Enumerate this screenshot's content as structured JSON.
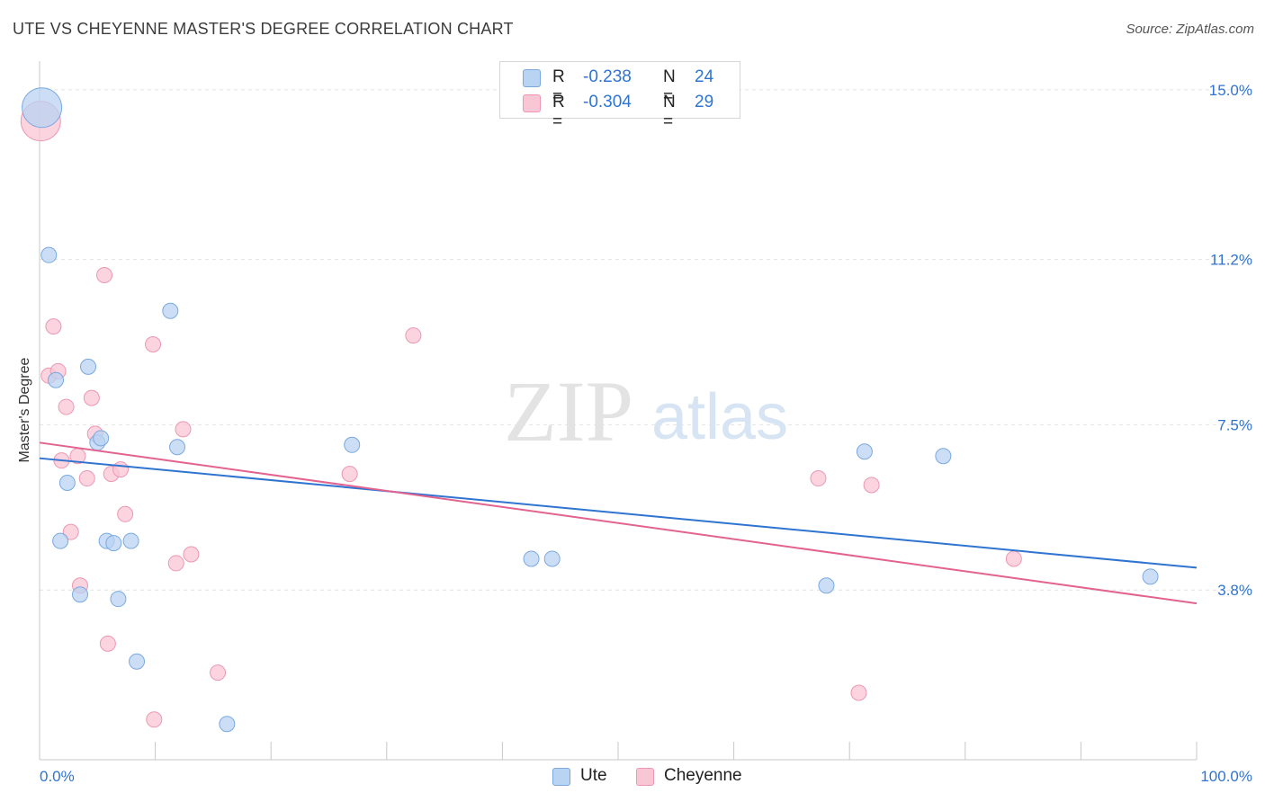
{
  "title": "UTE VS CHEYENNE MASTER'S DEGREE CORRELATION CHART",
  "source": "Source: ZipAtlas.com",
  "watermark": {
    "zip": "ZIP",
    "atlas": "atlas"
  },
  "legend": {
    "rows": [
      {
        "r_label": "R =",
        "r_value": "-0.238",
        "n_label": "N =",
        "n_value": "24"
      },
      {
        "r_label": "R =",
        "r_value": "-0.304",
        "n_label": "N =",
        "n_value": "29"
      }
    ]
  },
  "colors": {
    "ute_fill": "#b9d3f2",
    "ute_stroke": "#7aa9e0",
    "ute_line": "#2f74d0",
    "cheyenne_fill": "#f9c6d6",
    "cheyenne_stroke": "#ec98b3",
    "cheyenne_line": "#e2638f",
    "tick_text": "#2f74d0",
    "grid": "#e2e2e2"
  },
  "chart_data": {
    "type": "scatter",
    "title": "UTE VS CHEYENNE MASTER'S DEGREE CORRELATION CHART",
    "xlabel": "",
    "ylabel": "Master's Degree",
    "xlim": [
      0,
      100
    ],
    "ylim": [
      0,
      15.4
    ],
    "x_tick_labels": [
      "0.0%",
      "100.0%"
    ],
    "y_ticks": [
      3.8,
      7.5,
      11.2,
      15.0
    ],
    "y_tick_labels": [
      "3.8%",
      "7.5%",
      "11.2%",
      "15.0%"
    ],
    "grid": "horizontal dashed",
    "legend_position": "top-center and bottom",
    "series": [
      {
        "name": "Ute",
        "r": -0.238,
        "n": 24,
        "trend": {
          "x": [
            0,
            100
          ],
          "y": [
            6.75,
            4.3
          ]
        },
        "points": [
          {
            "x": 0.2,
            "y": 14.6,
            "big": true
          },
          {
            "x": 0.8,
            "y": 11.3
          },
          {
            "x": 1.4,
            "y": 8.5
          },
          {
            "x": 1.8,
            "y": 4.9
          },
          {
            "x": 2.4,
            "y": 6.2
          },
          {
            "x": 3.5,
            "y": 3.7
          },
          {
            "x": 4.2,
            "y": 8.8
          },
          {
            "x": 5.0,
            "y": 7.1
          },
          {
            "x": 5.3,
            "y": 7.2
          },
          {
            "x": 5.8,
            "y": 4.9
          },
          {
            "x": 6.4,
            "y": 4.85
          },
          {
            "x": 6.8,
            "y": 3.6
          },
          {
            "x": 7.9,
            "y": 4.9
          },
          {
            "x": 8.4,
            "y": 2.2
          },
          {
            "x": 11.3,
            "y": 10.05
          },
          {
            "x": 11.9,
            "y": 7.0
          },
          {
            "x": 16.2,
            "y": 0.8
          },
          {
            "x": 27.0,
            "y": 7.05
          },
          {
            "x": 42.5,
            "y": 4.5
          },
          {
            "x": 44.3,
            "y": 4.5
          },
          {
            "x": 68.0,
            "y": 3.9
          },
          {
            "x": 71.3,
            "y": 6.9
          },
          {
            "x": 78.1,
            "y": 6.8
          },
          {
            "x": 96.0,
            "y": 4.1
          }
        ]
      },
      {
        "name": "Cheyenne",
        "r": -0.304,
        "n": 29,
        "trend": {
          "x": [
            0,
            100
          ],
          "y": [
            7.1,
            3.5
          ]
        },
        "points": [
          {
            "x": 0.1,
            "y": 14.3,
            "big": true
          },
          {
            "x": 0.8,
            "y": 8.6
          },
          {
            "x": 1.2,
            "y": 9.7
          },
          {
            "x": 1.6,
            "y": 8.7
          },
          {
            "x": 1.9,
            "y": 6.7
          },
          {
            "x": 2.3,
            "y": 7.9
          },
          {
            "x": 2.7,
            "y": 5.1
          },
          {
            "x": 3.3,
            "y": 6.8
          },
          {
            "x": 3.5,
            "y": 3.9
          },
          {
            "x": 4.1,
            "y": 6.3
          },
          {
            "x": 4.5,
            "y": 8.1
          },
          {
            "x": 4.8,
            "y": 7.3
          },
          {
            "x": 5.6,
            "y": 10.85
          },
          {
            "x": 5.9,
            "y": 2.6
          },
          {
            "x": 6.2,
            "y": 6.4
          },
          {
            "x": 7.0,
            "y": 6.5
          },
          {
            "x": 7.4,
            "y": 5.5
          },
          {
            "x": 9.8,
            "y": 9.3
          },
          {
            "x": 9.9,
            "y": 0.9
          },
          {
            "x": 11.8,
            "y": 4.4
          },
          {
            "x": 12.4,
            "y": 7.4
          },
          {
            "x": 13.1,
            "y": 4.6
          },
          {
            "x": 15.4,
            "y": 1.95
          },
          {
            "x": 26.8,
            "y": 6.4
          },
          {
            "x": 32.3,
            "y": 9.5
          },
          {
            "x": 67.3,
            "y": 6.3
          },
          {
            "x": 70.8,
            "y": 1.5
          },
          {
            "x": 71.9,
            "y": 6.15
          },
          {
            "x": 84.2,
            "y": 4.5
          }
        ]
      }
    ]
  }
}
